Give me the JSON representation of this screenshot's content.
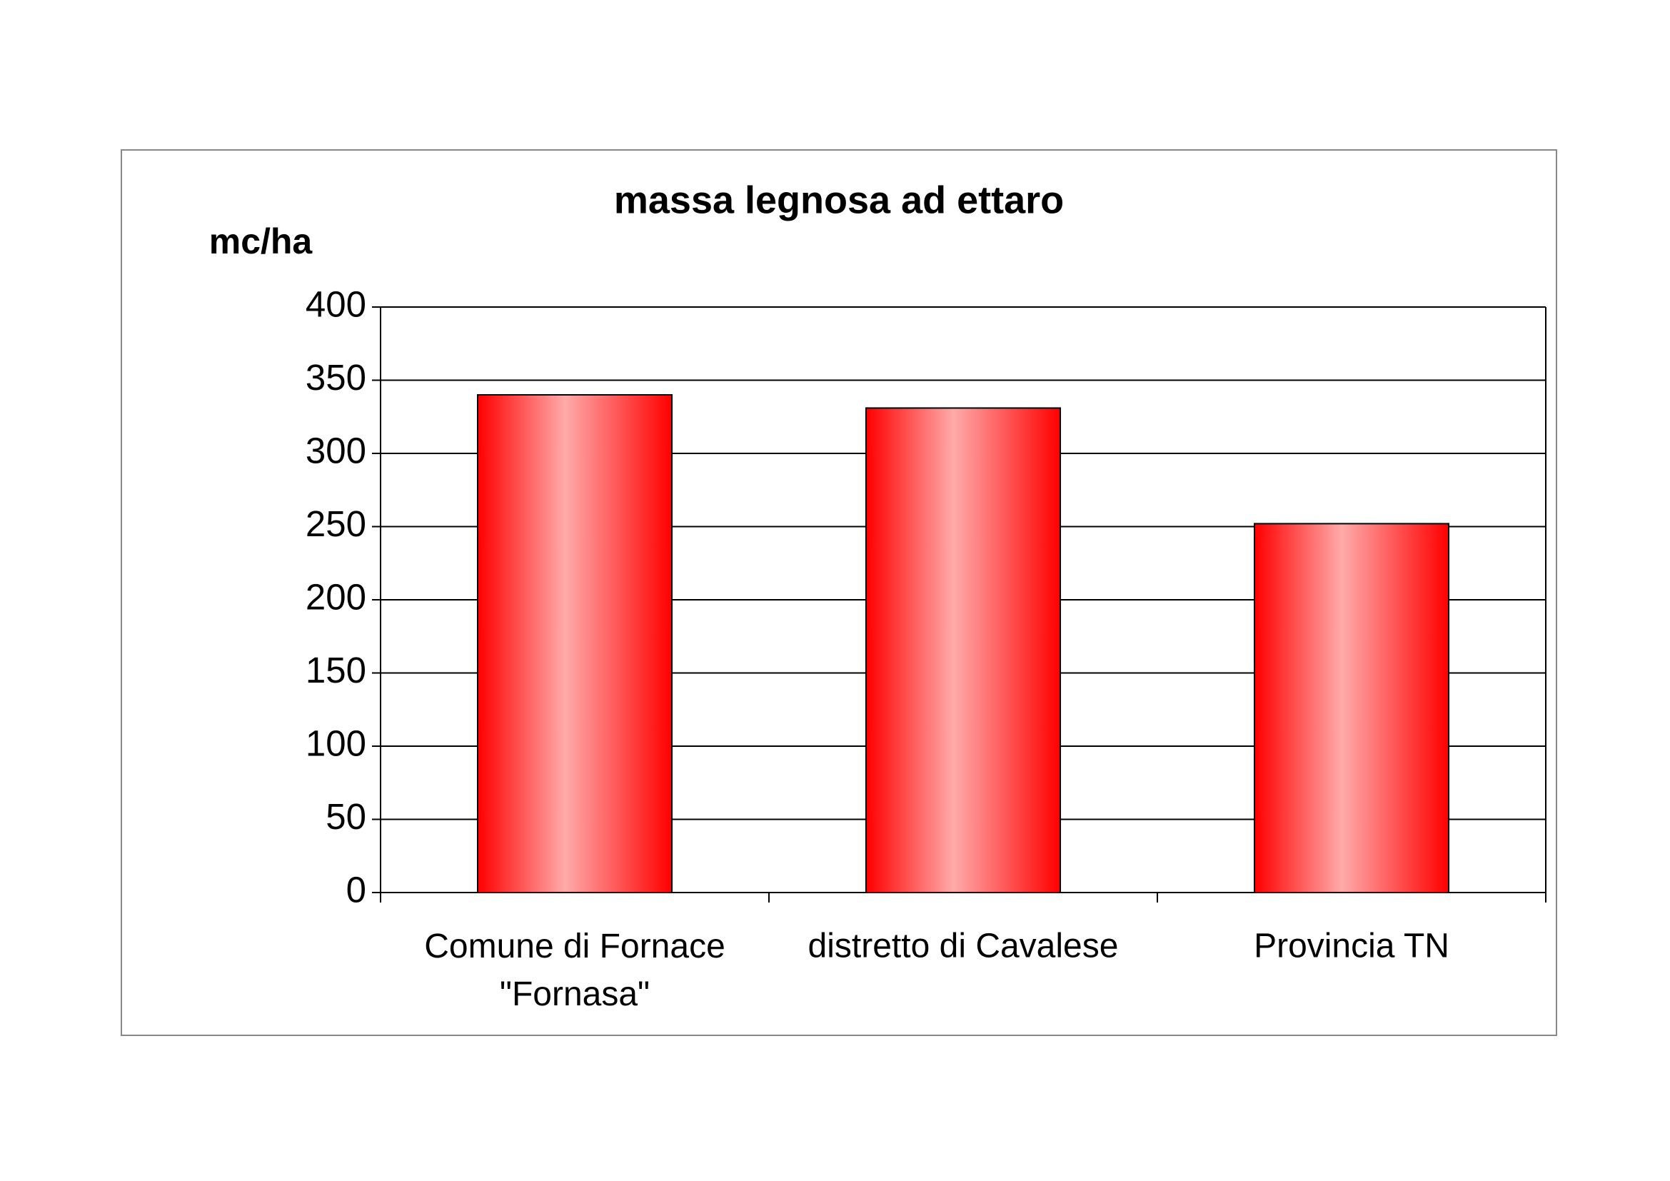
{
  "chart_data": {
    "type": "bar",
    "title": "massa legnosa ad ettaro",
    "y_label": "mc/ha",
    "categories": [
      "Comune di Fornace\n\"Fornasa\"",
      "distretto di Cavalese",
      "Provincia TN"
    ],
    "values": [
      340,
      331,
      252
    ],
    "color": "#ff0000",
    "ylim": [
      0,
      400
    ],
    "yticks": [
      0,
      50,
      100,
      150,
      200,
      250,
      300,
      350,
      400
    ],
    "grid": true
  }
}
